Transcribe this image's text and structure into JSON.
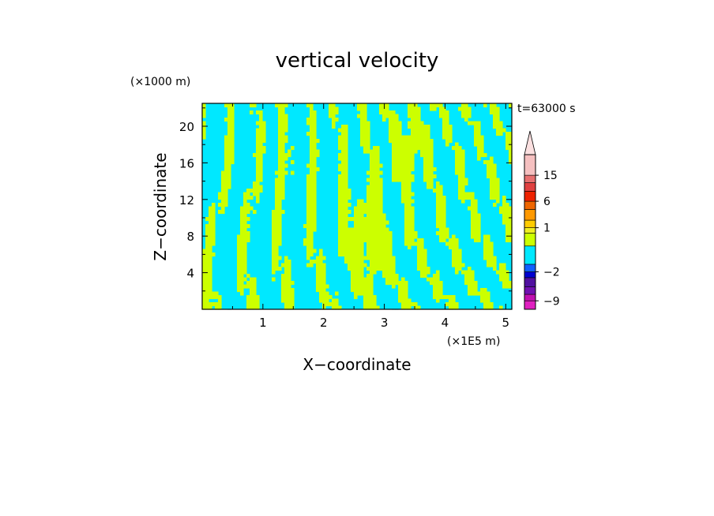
{
  "chart_data": {
    "type": "heatmap",
    "title": "vertical velocity",
    "xlabel": "X−coordinate",
    "ylabel": "Z−coordinate",
    "x_unit": "(×1E5 m)",
    "y_unit": "(×1000 m)",
    "time_label": "t=63000 s",
    "xlim": [
      0,
      5.1
    ],
    "ylim": [
      0,
      22.5
    ],
    "x_ticks": [
      1,
      2,
      3,
      4,
      5
    ],
    "y_ticks": [
      4,
      8,
      12,
      16,
      20
    ],
    "colorbar": {
      "tick_labels": [
        "15",
        "6",
        "1",
        "−2",
        "−9"
      ],
      "tick_values": [
        15,
        6,
        1,
        -2,
        -9
      ],
      "levels": [
        {
          "upper": -9,
          "color": "#e020c0"
        },
        {
          "upper": -7,
          "color": "#c010b0"
        },
        {
          "upper": -5,
          "color": "#7010b0"
        },
        {
          "upper": -3,
          "color": "#5010a0"
        },
        {
          "upper": -2,
          "color": "#0000d0"
        },
        {
          "upper": -1,
          "color": "#1060ff"
        },
        {
          "upper": 0,
          "color": "#00e8ff"
        },
        {
          "upper": 0.5,
          "color": "#ccff00"
        },
        {
          "upper": 1,
          "color": "#eeee22"
        },
        {
          "upper": 2,
          "color": "#ffcc00"
        },
        {
          "upper": 4,
          "color": "#ff9900"
        },
        {
          "upper": 6,
          "color": "#ee6600"
        },
        {
          "upper": 9,
          "color": "#ee2200"
        },
        {
          "upper": 12,
          "color": "#e04040"
        },
        {
          "upper": 15,
          "color": "#e87070"
        },
        {
          "upper": 25,
          "color": "#f5c0c0"
        },
        {
          "upper": null,
          "color": "#fbe0e0"
        }
      ]
    },
    "field_note_colors": {
      "positive": "#ccff00",
      "negative": "#00e8ff"
    }
  }
}
